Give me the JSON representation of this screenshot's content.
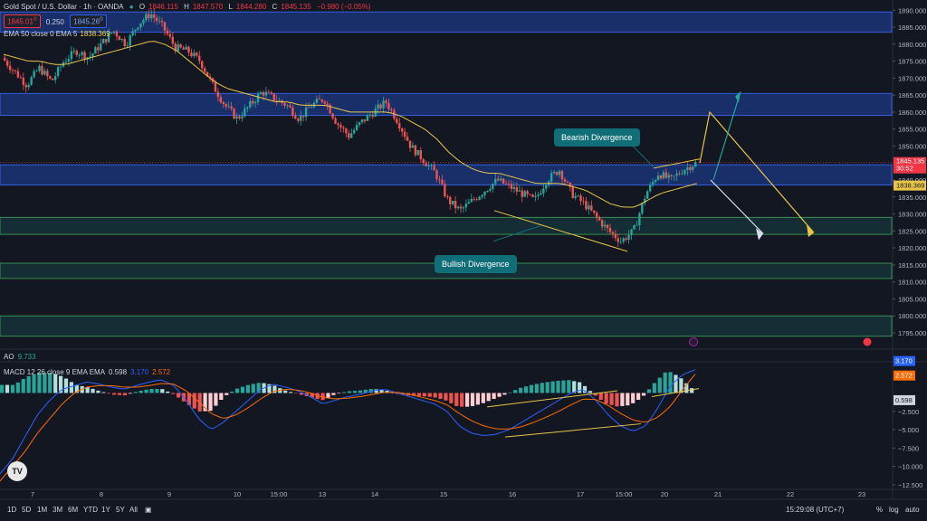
{
  "header": {
    "symbol": "Gold Spot / U.S. Dollar · 1h · OANDA",
    "open_label": "O",
    "open": "1846.115",
    "high_label": "H",
    "high": "1847.570",
    "low_label": "L",
    "low": "1844.280",
    "close_label": "C",
    "close": "1845.135",
    "change": "−0.980 (−0.05%)",
    "bid": "1845.01",
    "bid_sup": "0",
    "spread": "0.250",
    "ask": "1845.26",
    "ask_sup": "0"
  },
  "indicators": {
    "ema_label": "EMA 50 close 0 EMA 5",
    "ema_value": "1838.369",
    "ao_label": "AO",
    "ao_value": "9.733",
    "macd_label": "MACD 12 26 close 9 EMA EMA",
    "macd_hist": "0.598",
    "macd_line": "3.170",
    "macd_signal": "2.572"
  },
  "annotations": {
    "bearish": "Bearish Divergence",
    "bullish": "Bullish Divergence"
  },
  "chart_data": [
    {
      "type": "candlestick",
      "title": "Gold Spot / U.S. Dollar · 1h · OANDA",
      "ylim": [
        1791,
        1893
      ],
      "y_ticks": [
        1795,
        1800,
        1805,
        1810,
        1815,
        1820,
        1825,
        1830,
        1835,
        1840,
        1845,
        1850,
        1855,
        1860,
        1865,
        1870,
        1875,
        1880,
        1885,
        1890
      ],
      "x_ticks": [
        "7",
        "8",
        "9",
        "10",
        "15:00",
        "13",
        "14",
        "15",
        "16",
        "17",
        "15:00",
        "20",
        "21",
        "22",
        "23"
      ],
      "price_path": [
        1876,
        1872,
        1868,
        1873,
        1869,
        1875,
        1878,
        1876,
        1880,
        1884,
        1880,
        1886,
        1889,
        1885,
        1879,
        1878,
        1875,
        1868,
        1862,
        1858,
        1862,
        1866,
        1864,
        1862,
        1858,
        1862,
        1864,
        1857,
        1853,
        1857,
        1860,
        1863,
        1857,
        1850,
        1846,
        1842,
        1834,
        1831,
        1834,
        1837,
        1840,
        1838,
        1836,
        1834,
        1840,
        1843,
        1836,
        1833,
        1829,
        1825,
        1822,
        1825,
        1836,
        1842,
        1840,
        1843,
        1845
      ],
      "ema_path": [
        1877,
        1876,
        1875,
        1875,
        1874,
        1874,
        1875,
        1876,
        1877,
        1878,
        1879,
        1880,
        1881,
        1880,
        1878,
        1875,
        1872,
        1869,
        1867,
        1866,
        1865,
        1864,
        1863,
        1863,
        1862,
        1862,
        1862,
        1861,
        1860,
        1860,
        1860,
        1860,
        1859,
        1857,
        1855,
        1852,
        1848,
        1845,
        1843,
        1842,
        1842,
        1841,
        1840,
        1839,
        1839,
        1839,
        1838,
        1837,
        1835,
        1833,
        1832,
        1832,
        1834,
        1836,
        1837,
        1838,
        1839
      ],
      "zones": [
        {
          "from": 1883.5,
          "to": 1889.5,
          "color": "#2962ff"
        },
        {
          "from": 1859,
          "to": 1865.5,
          "color": "#2962ff"
        },
        {
          "from": 1838.5,
          "to": 1844.5,
          "color": "#2962ff"
        },
        {
          "from": 1824,
          "to": 1829,
          "color": "#26a69a"
        },
        {
          "from": 1811,
          "to": 1815.5,
          "color": "#26a69a"
        },
        {
          "from": 1794,
          "to": 1800,
          "color": "#26a69a"
        }
      ],
      "last_price": "1845.135",
      "last_price_sub": "30:52",
      "ema_badge": "1838.369"
    },
    {
      "type": "bar+line",
      "title": "MACD 12 26 close 9 EMA EMA",
      "ylim": [
        -13,
        4
      ],
      "y_ticks": [
        -2.5,
        -5.0,
        -7.5,
        -10.0,
        -12.5
      ],
      "y_tick_labels": [
        "−2.500",
        "−5.000",
        "−7.500",
        "−10.000",
        "−12.500"
      ],
      "macd_path": [
        -11,
        -9,
        -6,
        -3,
        -1,
        0.5,
        1,
        1.5,
        1.2,
        0.8,
        0.5,
        1,
        1.5,
        1.8,
        1,
        -1,
        -3.5,
        -5,
        -4,
        -2.5,
        -1,
        0.5,
        1.2,
        0.8,
        0.3,
        -0.5,
        -1.5,
        -1,
        -0.5,
        -0.2,
        0.3,
        0.5,
        0,
        -0.5,
        -1,
        -1.5,
        -2.5,
        -4.5,
        -5.5,
        -5.8,
        -5.6,
        -5,
        -4,
        -3,
        -2,
        -1,
        0,
        0.5,
        -1,
        -3,
        -4.5,
        -5.2,
        -4.5,
        -2,
        1,
        2.5,
        3.17
      ],
      "signal_path": [
        -12,
        -10,
        -8,
        -5.5,
        -3.5,
        -1.5,
        0,
        0.8,
        1,
        1,
        0.8,
        0.8,
        1,
        1.3,
        1.2,
        0.3,
        -1.2,
        -2.8,
        -3.5,
        -3,
        -2,
        -0.8,
        0.2,
        0.5,
        0.4,
        0,
        -0.6,
        -0.8,
        -0.7,
        -0.5,
        -0.2,
        0.1,
        0.1,
        -0.2,
        -0.6,
        -1,
        -1.6,
        -2.8,
        -3.8,
        -4.5,
        -4.9,
        -4.9,
        -4.6,
        -4,
        -3.3,
        -2.5,
        -1.6,
        -0.8,
        -0.9,
        -1.7,
        -2.8,
        -3.7,
        -4,
        -3.3,
        -1.8,
        0.5,
        2.572
      ],
      "badges": [
        "3.170",
        "2.572",
        "0.598"
      ]
    }
  ],
  "bottom_bar": {
    "timeframes": [
      "1D",
      "5D",
      "1M",
      "3M",
      "6M",
      "YTD",
      "1Y",
      "5Y",
      "All"
    ],
    "clock": "15:29:08 (UTC+7)",
    "opts": [
      "%",
      "log",
      "auto"
    ]
  }
}
